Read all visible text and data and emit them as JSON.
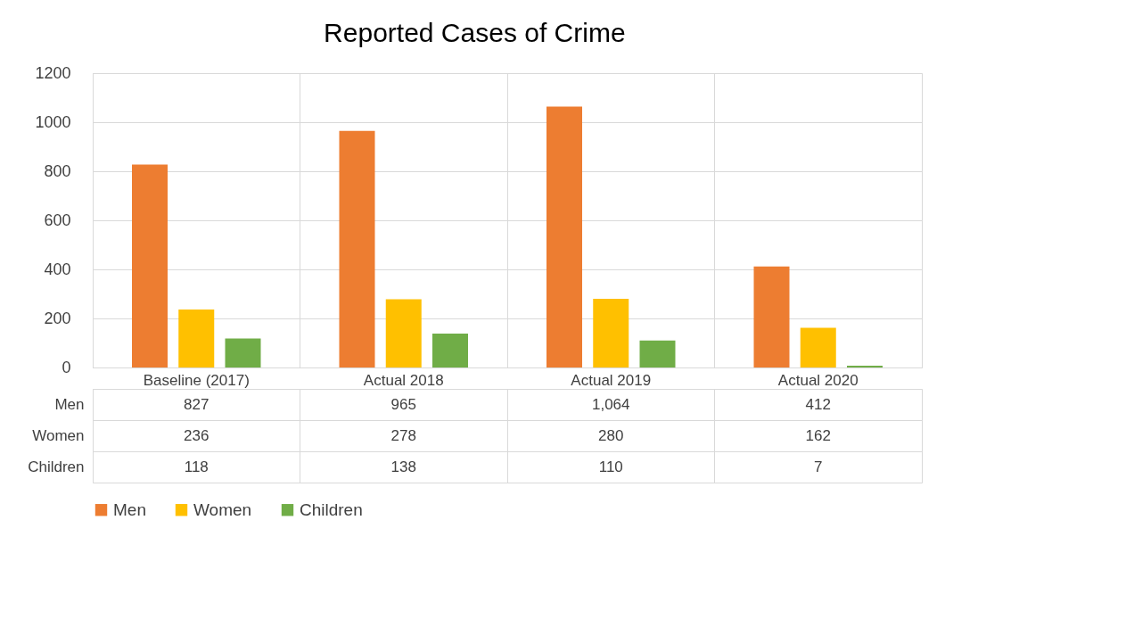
{
  "chart_data": {
    "type": "bar",
    "title": "Reported Cases of Crime",
    "categories": [
      "Baseline (2017)",
      "Actual 2018",
      "Actual 2019",
      "Actual 2020"
    ],
    "series": [
      {
        "name": "Men",
        "color": "#ed7d31",
        "values": [
          827,
          965,
          1064,
          412
        ],
        "value_labels": [
          "827",
          "965",
          "1,064",
          "412"
        ]
      },
      {
        "name": "Women",
        "color": "#ffc000",
        "values": [
          236,
          278,
          280,
          162
        ],
        "value_labels": [
          "236",
          "278",
          "280",
          "162"
        ]
      },
      {
        "name": "Children",
        "color": "#70ad47",
        "values": [
          118,
          138,
          110,
          7
        ],
        "value_labels": [
          "118",
          "138",
          "110",
          "7"
        ]
      }
    ],
    "ylim": [
      0,
      1200
    ],
    "yticks": [
      0,
      200,
      400,
      600,
      800,
      1000,
      1200
    ],
    "grid": true,
    "legend": "bottom"
  }
}
